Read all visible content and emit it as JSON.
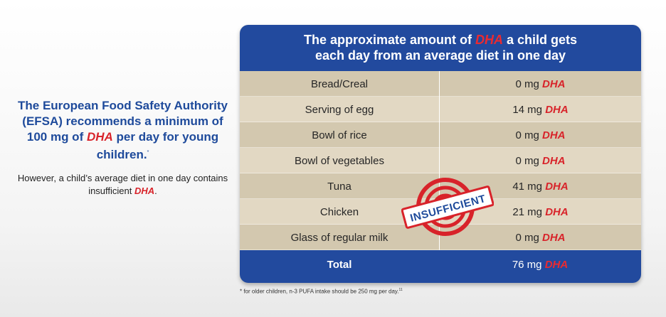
{
  "left": {
    "headline_part1": "The European Food Safety Authority (EFSA) recommends a minimum of 100 mg of",
    "headline_dha": "DHA",
    "headline_part2": "per day for young children.",
    "headline_mark": "*",
    "subtext_part1": "However, a child’s average diet in one day contains insufficient",
    "subtext_dha": "DHA",
    "subtext_end": "."
  },
  "table": {
    "title_part1": "The approximate amount of",
    "title_dha": "DHA",
    "title_part2": "a child gets",
    "title_line2": "each day from an average diet in one day",
    "rows": [
      {
        "food": "Bread/Creal",
        "amount": "0 mg",
        "unit": "DHA"
      },
      {
        "food": "Serving of egg",
        "amount": "14 mg",
        "unit": "DHA"
      },
      {
        "food": "Bowl of rice",
        "amount": "0 mg",
        "unit": "DHA"
      },
      {
        "food": "Bowl of vegetables",
        "amount": "0 mg",
        "unit": "DHA"
      },
      {
        "food": "Tuna",
        "amount": "41 mg",
        "unit": "DHA"
      },
      {
        "food": "Chicken",
        "amount": "21 mg",
        "unit": "DHA"
      },
      {
        "food": "Glass of regular milk",
        "amount": "0 mg",
        "unit": "DHA"
      }
    ],
    "total": {
      "label": "Total",
      "amount": "76 mg",
      "unit": "DHA"
    }
  },
  "stamp": {
    "text": "INSUFFICIENT",
    "color": "#d8232a"
  },
  "footnote": {
    "text": "* for older children, n-3 PUFA intake should be 250 mg per day.",
    "ref": "11"
  },
  "colors": {
    "brand_blue": "#224a9e",
    "dha_red": "#d8232a",
    "row_dark": "#d3c8af",
    "row_light": "#e2d8c3"
  }
}
